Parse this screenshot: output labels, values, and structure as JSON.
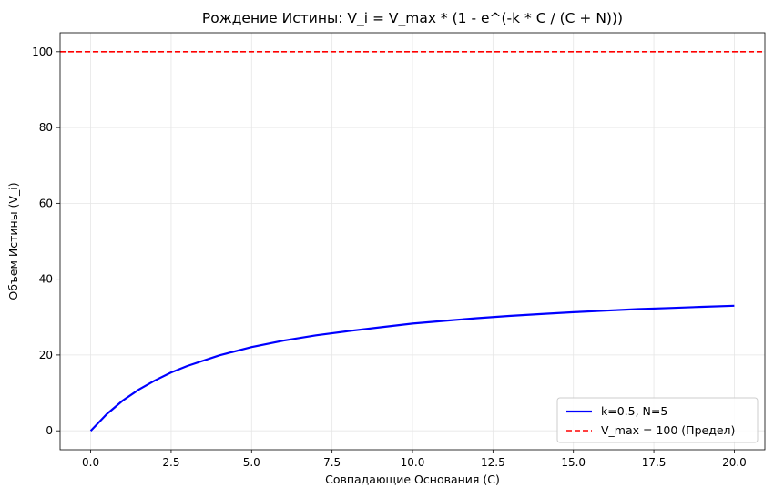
{
  "chart_data": {
    "type": "line",
    "title": "Рождение Истины: V_i = V_max * (1 - e^(-k * C / (C + N)))",
    "xlabel": "Совпадающие Основания (C)",
    "ylabel": "Объем Истины (V_i)",
    "xlim": [
      -0.95,
      20.95
    ],
    "ylim": [
      -5,
      105
    ],
    "x_ticks": [
      0.0,
      2.5,
      5.0,
      7.5,
      10.0,
      12.5,
      15.0,
      17.5,
      20.0
    ],
    "x_tick_labels": [
      "0.0",
      "2.5",
      "5.0",
      "7.5",
      "10.0",
      "12.5",
      "15.0",
      "17.5",
      "20.0"
    ],
    "y_ticks": [
      0,
      20,
      40,
      60,
      80,
      100
    ],
    "y_tick_labels": [
      "0",
      "20",
      "40",
      "60",
      "80",
      "100"
    ],
    "grid": true,
    "legend_position": "lower-right",
    "series": [
      {
        "name": "k=0.5, N=5",
        "color": "#0000ff",
        "style": "solid",
        "x": [
          0,
          0.5,
          1,
          1.5,
          2,
          2.5,
          3,
          4,
          5,
          6,
          7,
          8,
          9,
          10,
          11,
          12,
          13,
          14,
          15,
          16,
          17,
          18,
          19,
          20
        ],
        "y": [
          0,
          4.4,
          8.0,
          10.9,
          13.3,
          15.4,
          17.1,
          19.9,
          22.1,
          23.8,
          25.2,
          26.3,
          27.3,
          28.3,
          29.0,
          29.7,
          30.3,
          30.8,
          31.3,
          31.7,
          32.1,
          32.4,
          32.7,
          33.0
        ]
      },
      {
        "name": "V_max = 100 (Предел)",
        "color": "#ff0000",
        "style": "dashed",
        "hline": 100
      }
    ]
  }
}
